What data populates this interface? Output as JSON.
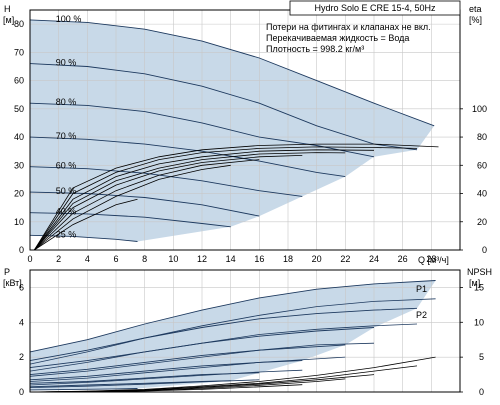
{
  "chart_data": [
    {
      "type": "line",
      "title": "Hydro Solo E CRE 15-4, 50Hz",
      "notes": [
        "Потери на фитингах и клапанах не вкл.",
        "Перекачиваемая жидкость = Вода",
        "Плотность = 998.2 кг/м³"
      ],
      "ylabel": [
        "H",
        "[м]"
      ],
      "ylabel_right": "eta",
      "ylabel_right_unit": "[%]",
      "x_unit_label": "Q [м³/ч]",
      "xlim": [
        0,
        30
      ],
      "ylim": [
        0,
        85
      ],
      "x_ticks": [
        "0",
        "2",
        "4",
        "6",
        "8",
        "10",
        "12",
        "14",
        "16",
        "18",
        "20",
        "22",
        "24",
        "26",
        "28"
      ],
      "y_ticks": [
        "0",
        "10",
        "20",
        "30",
        "40",
        "50",
        "60",
        "70",
        "80"
      ],
      "eta_ticks": [
        "0",
        "20",
        "40",
        "60",
        "80",
        "100"
      ],
      "grid": true,
      "speed_labels": [
        "100 %",
        "90 %",
        "80 %",
        "70 %",
        "60 %",
        "50 %",
        "40 %",
        "25 %"
      ],
      "speed_curves": [
        {
          "name": "100 %",
          "x": [
            0,
            4,
            8,
            12,
            16,
            20,
            24,
            28.2
          ],
          "y": [
            81.5,
            80.6,
            78.2,
            74.0,
            68.0,
            60.0,
            52.0,
            44.0
          ]
        },
        {
          "name": "90 %",
          "x": [
            0,
            4,
            8,
            12,
            16,
            20,
            24,
            27
          ],
          "y": [
            66.0,
            65.0,
            62.4,
            58.0,
            52.0,
            44.0,
            37.5,
            35.5
          ]
        },
        {
          "name": "80 %",
          "x": [
            0,
            4,
            8,
            12,
            16,
            20,
            24
          ],
          "y": [
            52.0,
            51.2,
            49.0,
            45.0,
            40.0,
            37.0,
            33.0
          ]
        },
        {
          "name": "70 %",
          "x": [
            0,
            4,
            8,
            12,
            16,
            20,
            22
          ],
          "y": [
            40.0,
            39.2,
            37.5,
            35.0,
            31.5,
            27.5,
            26.0
          ]
        },
        {
          "name": "60 %",
          "x": [
            0,
            4,
            8,
            12,
            16,
            19
          ],
          "y": [
            29.5,
            28.8,
            27.2,
            24.5,
            21.0,
            19.0
          ]
        },
        {
          "name": "50 %",
          "x": [
            0,
            4,
            8,
            12,
            16
          ],
          "y": [
            20.5,
            20.0,
            18.6,
            16.0,
            12.0
          ]
        },
        {
          "name": "40 %",
          "x": [
            0,
            4,
            8,
            12,
            14
          ],
          "y": [
            13.2,
            12.8,
            11.6,
            9.4,
            8.2
          ]
        },
        {
          "name": "25 %",
          "x": [
            0,
            3,
            6,
            7.5
          ],
          "y": [
            5.2,
            4.8,
            3.8,
            3.0
          ]
        }
      ],
      "eta_curves": [
        {
          "x": [
            0.3,
            3,
            6,
            9,
            12,
            16,
            20,
            24,
            28.5
          ],
          "y": [
            0,
            22,
            29,
            33,
            35.5,
            37,
            37.5,
            37.5,
            36.5
          ]
        },
        {
          "x": [
            0.3,
            3,
            6,
            9,
            12,
            16,
            20,
            24,
            27
          ],
          "y": [
            0,
            20,
            27.5,
            32,
            34.5,
            36,
            36.5,
            36.3,
            36
          ]
        },
        {
          "x": [
            0.3,
            3,
            6,
            9,
            12,
            16,
            20,
            24
          ],
          "y": [
            0,
            18,
            26,
            30.5,
            33,
            35,
            35.5,
            35.3
          ]
        },
        {
          "x": [
            0.3,
            3,
            6,
            9,
            12,
            16,
            20,
            22
          ],
          "y": [
            0,
            16.5,
            24.5,
            29,
            32,
            34,
            34.5,
            34.4
          ]
        },
        {
          "x": [
            0.3,
            3,
            6,
            9,
            12,
            16,
            19
          ],
          "y": [
            0,
            15,
            23,
            28,
            31,
            33,
            33.5
          ]
        },
        {
          "x": [
            0.3,
            3,
            6,
            9,
            12,
            16
          ],
          "y": [
            0,
            13,
            21,
            26.5,
            30,
            32
          ]
        },
        {
          "x": [
            0.3,
            3,
            6,
            9,
            12,
            14
          ],
          "y": [
            0,
            11,
            19,
            25,
            28.5,
            30
          ]
        },
        {
          "x": [
            0.3,
            3,
            6,
            7.5
          ],
          "y": [
            0,
            9,
            16,
            18
          ]
        }
      ]
    },
    {
      "type": "line",
      "ylabel": [
        "P",
        "[кВт]"
      ],
      "ylabel_right": "NPSH",
      "ylabel_right_unit": "[м]",
      "xlim": [
        0,
        30
      ],
      "ylim": [
        0,
        7
      ],
      "y_ticks": [
        "0",
        "2",
        "4",
        "6"
      ],
      "npsh_ticks": [
        "0",
        "5",
        "10",
        "15"
      ],
      "series_labels": [
        "P1",
        "P2"
      ],
      "p1_curves": [
        {
          "x": [
            0,
            4,
            8,
            12,
            16,
            20,
            24,
            28.3
          ],
          "y": [
            2.3,
            3.0,
            3.9,
            4.7,
            5.4,
            5.9,
            6.2,
            6.4
          ]
        },
        {
          "x": [
            0,
            4,
            8,
            12,
            16,
            20,
            24,
            27
          ],
          "y": [
            1.8,
            2.4,
            3.1,
            3.7,
            4.2,
            4.5,
            4.7,
            4.8
          ]
        },
        {
          "x": [
            0,
            4,
            8,
            12,
            16,
            20,
            24
          ],
          "y": [
            1.4,
            1.8,
            2.3,
            2.8,
            3.2,
            3.5,
            3.7
          ]
        },
        {
          "x": [
            0,
            4,
            8,
            12,
            16,
            20,
            22
          ],
          "y": [
            1.0,
            1.3,
            1.7,
            2.1,
            2.4,
            2.6,
            2.7
          ]
        },
        {
          "x": [
            0,
            4,
            8,
            12,
            16,
            19
          ],
          "y": [
            0.7,
            0.9,
            1.2,
            1.5,
            1.7,
            1.8
          ]
        },
        {
          "x": [
            0,
            4,
            8,
            12,
            16
          ],
          "y": [
            0.5,
            0.6,
            0.8,
            1.0,
            1.1
          ]
        },
        {
          "x": [
            0,
            4,
            8,
            12,
            14
          ],
          "y": [
            0.3,
            0.4,
            0.5,
            0.6,
            0.65
          ]
        },
        {
          "x": [
            0,
            3,
            6,
            7.5
          ],
          "y": [
            0.12,
            0.15,
            0.18,
            0.2
          ]
        }
      ],
      "p2_curves": [
        {
          "x": [
            0,
            4,
            8,
            12,
            16,
            20,
            24,
            28.3
          ],
          "y": [
            1.6,
            2.3,
            3.1,
            3.8,
            4.4,
            4.9,
            5.2,
            5.35
          ]
        },
        {
          "x": [
            0,
            4,
            8,
            12,
            16,
            20,
            24,
            27
          ],
          "y": [
            1.2,
            1.7,
            2.3,
            2.8,
            3.3,
            3.6,
            3.8,
            3.9
          ]
        },
        {
          "x": [
            0,
            4,
            8,
            12,
            16,
            20,
            24
          ],
          "y": [
            0.9,
            1.2,
            1.6,
            2.0,
            2.4,
            2.7,
            2.8
          ]
        },
        {
          "x": [
            0,
            4,
            8,
            12,
            16,
            20,
            22
          ],
          "y": [
            0.6,
            0.8,
            1.1,
            1.4,
            1.7,
            1.9,
            2.0
          ]
        },
        {
          "x": [
            0,
            4,
            8,
            12,
            16,
            19
          ],
          "y": [
            0.4,
            0.55,
            0.75,
            0.95,
            1.15,
            1.25
          ]
        },
        {
          "x": [
            0,
            4,
            8,
            12,
            16
          ],
          "y": [
            0.25,
            0.33,
            0.45,
            0.58,
            0.7
          ]
        }
      ],
      "npsh_curves": [
        {
          "x": [
            0,
            4,
            8,
            12,
            16,
            20,
            24,
            28.3
          ],
          "y": [
            0,
            0.05,
            0.15,
            0.35,
            0.6,
            0.95,
            1.4,
            2.0
          ]
        },
        {
          "x": [
            0,
            4,
            8,
            12,
            16,
            20,
            24,
            27
          ],
          "y": [
            0,
            0.04,
            0.12,
            0.3,
            0.5,
            0.8,
            1.2,
            1.5
          ]
        },
        {
          "x": [
            0,
            4,
            8,
            12,
            16,
            20,
            24
          ],
          "y": [
            0,
            0.03,
            0.1,
            0.25,
            0.45,
            0.7,
            1.0
          ]
        },
        {
          "x": [
            0,
            4,
            8,
            12,
            16,
            20,
            22
          ],
          "y": [
            0,
            0.03,
            0.08,
            0.2,
            0.38,
            0.6,
            0.75
          ]
        },
        {
          "x": [
            0,
            4,
            8,
            12,
            16,
            19
          ],
          "y": [
            0,
            0.02,
            0.06,
            0.15,
            0.3,
            0.42
          ]
        }
      ]
    }
  ],
  "colors": {
    "envelope_fill": "#c8d9e8",
    "grid": "#c8c8c8",
    "curve": "#1e3a5f",
    "eta": "#000000",
    "axis": "#000000"
  }
}
